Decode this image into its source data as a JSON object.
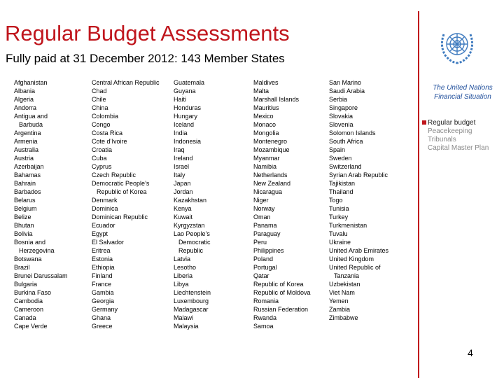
{
  "header": {
    "title": "Regular Budget Assessments",
    "subtitle": "Fully paid at 31 December 2012: 143 Member States"
  },
  "columns": [
    [
      "Afghanistan",
      "Albania",
      "Algeria",
      "Andorra",
      [
        "Antigua and",
        "Barbuda"
      ],
      "Argentina",
      "Armenia",
      "Australia",
      "Austria",
      "Azerbaijan",
      "Bahamas",
      "Bahrain",
      "Barbados",
      "Belarus",
      "Belgium",
      "Belize",
      "Bhutan",
      "Bolivia",
      [
        "Bosnia and",
        "Herzegovina"
      ],
      "Botswana",
      "Brazil",
      "Brunei Darussalam",
      "Bulgaria",
      "Burkina Faso",
      "Cambodia",
      "Cameroon",
      "Canada",
      "Cape Verde"
    ],
    [
      "Central African Republic",
      "Chad",
      "Chile",
      "China",
      "Colombia",
      "Congo",
      "Costa Rica",
      "Cote d’Ivoire",
      "Croatia",
      "Cuba",
      "Cyprus",
      "Czech Republic",
      [
        "Democratic People’s",
        "Republic of Korea"
      ],
      "Denmark",
      "Dominica",
      "Dominican Republic",
      "Ecuador",
      "Egypt",
      "El Salvador",
      "Eritrea",
      "Estonia",
      "Ethiopia",
      "Finland",
      "France",
      "Gambia",
      "Georgia",
      "Germany",
      "Ghana",
      "Greece"
    ],
    [
      "Guatemala",
      "Guyana",
      "Haiti",
      "Honduras",
      "Hungary",
      "Iceland",
      "India",
      "Indonesia",
      "Iraq",
      "Ireland",
      "Israel",
      "Italy",
      "Japan",
      "Jordan",
      "Kazakhstan",
      "Kenya",
      "Kuwait",
      "Kyrgyzstan",
      [
        "Lao People’s",
        "Democratic",
        "Republic"
      ],
      "Latvia",
      "Lesotho",
      "Liberia",
      "Libya",
      "Liechtenstein",
      "Luxembourg",
      "Madagascar",
      "Malawi",
      "Malaysia"
    ],
    [
      "Maldives",
      "Malta",
      "Marshall Islands",
      "Mauritius",
      "Mexico",
      "Monaco",
      "Mongolia",
      "Montenegro",
      "Mozambique",
      "Myanmar",
      "Namibia",
      "Netherlands",
      "New Zealand",
      "Nicaragua",
      "Niger",
      "Norway",
      "Oman",
      "Panama",
      "Paraguay",
      "Peru",
      "Philippines",
      "Poland",
      "Portugal",
      "Qatar",
      "Republic of Korea",
      "Republic of Moldova",
      "Romania",
      "Russian Federation",
      "Rwanda",
      "Samoa"
    ],
    [
      "San Marino",
      "Saudi Arabia",
      "Serbia",
      "Singapore",
      "Slovakia",
      "Slovenia",
      "Solomon Islands",
      "South Africa",
      "Spain",
      "Sweden",
      "Switzerland",
      "Syrian Arab Republic",
      "Tajikistan",
      "Thailand",
      "Togo",
      "Tunisia",
      "Turkey",
      "Turkmenistan",
      "Tuvalu",
      "Ukraine",
      "United Arab Emirates",
      "United Kingdom",
      [
        "United Republic of",
        "Tanzania"
      ],
      "Uzbekistan",
      "Viet Nam",
      "Yemen",
      "Zambia",
      "Zimbabwe"
    ]
  ],
  "sidebar": {
    "heading": [
      "The United Nations",
      "Financial Situation"
    ],
    "menu": [
      "Regular budget",
      "Peacekeeping",
      "Tribunals",
      "Capital Master Plan"
    ]
  },
  "page_number": "4"
}
